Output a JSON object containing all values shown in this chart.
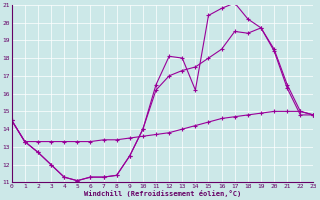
{
  "bg_color": "#cce8e8",
  "line_color": "#990099",
  "grid_color": "#b0d8d8",
  "xlabel": "Windchill (Refroidissement éolien,°C)",
  "xlim_min": 0,
  "xlim_max": 23,
  "ylim_min": 11,
  "ylim_max": 21,
  "xticks": [
    0,
    1,
    2,
    3,
    4,
    5,
    6,
    7,
    8,
    9,
    10,
    11,
    12,
    13,
    14,
    15,
    16,
    17,
    18,
    19,
    20,
    21,
    22,
    23
  ],
  "yticks": [
    11,
    12,
    13,
    14,
    15,
    16,
    17,
    18,
    19,
    20,
    21
  ],
  "line1_y": [
    14.5,
    13.3,
    12.7,
    12.0,
    11.3,
    11.1,
    11.3,
    11.3,
    11.4,
    12.5,
    14.0,
    16.5,
    18.1,
    18.0,
    16.2,
    20.4,
    20.8,
    21.1,
    20.2,
    19.7,
    18.4,
    16.3,
    14.8,
    14.8
  ],
  "line2_y": [
    14.5,
    13.3,
    12.7,
    12.0,
    11.3,
    11.1,
    11.3,
    11.3,
    11.4,
    12.5,
    14.0,
    16.2,
    17.0,
    17.3,
    17.5,
    18.0,
    18.5,
    19.5,
    19.4,
    19.7,
    18.5,
    16.5,
    15.0,
    14.8
  ],
  "line3_y": [
    14.5,
    13.3,
    13.3,
    13.3,
    13.3,
    13.3,
    13.3,
    13.4,
    13.4,
    13.5,
    13.6,
    13.7,
    13.8,
    14.0,
    14.2,
    14.4,
    14.6,
    14.7,
    14.8,
    14.9,
    15.0,
    15.0,
    15.0,
    14.8
  ],
  "tick_color": "#660066",
  "tick_fontsize": 4.5,
  "label_fontsize": 5.0,
  "spine_color": "#660066"
}
